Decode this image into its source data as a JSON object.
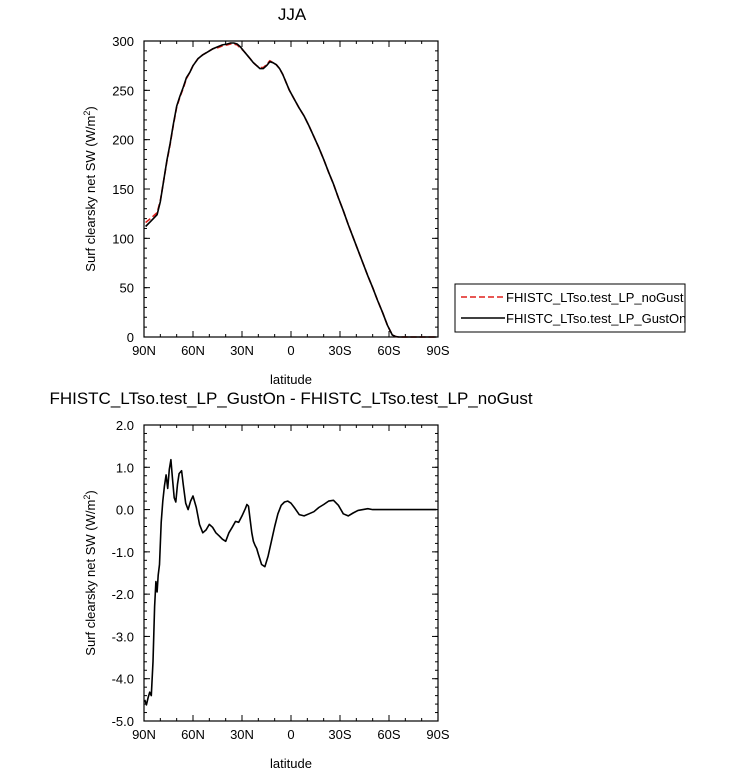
{
  "chart_data": [
    {
      "type": "line",
      "title": "JJA",
      "xlabel": "latitude",
      "ylabel": "Surf clearsky net SW (W/m",
      "ylabel_sup": "2",
      "ylabel_close": ")",
      "xlim": [
        90,
        -90
      ],
      "ylim": [
        0,
        300
      ],
      "xticks": [
        90,
        60,
        30,
        0,
        -30,
        -60,
        -90
      ],
      "xtick_labels": [
        "90N",
        "60N",
        "30N",
        "0",
        "30S",
        "60S",
        "90S"
      ],
      "yticks": [
        0,
        50,
        100,
        150,
        200,
        250,
        300
      ],
      "ytick_labels": [
        "0",
        "50",
        "100",
        "150",
        "200",
        "250",
        "300"
      ],
      "grid": false,
      "legend": "right",
      "series": [
        {
          "name": "FHISTC_LTso.test_LP_noGust",
          "color": "#e0201b",
          "dash": "dashed",
          "x": [
            89,
            86,
            82,
            80,
            78,
            76,
            74,
            72,
            70,
            68,
            66,
            64,
            62,
            60,
            57,
            54,
            51,
            48,
            45,
            42,
            39,
            37,
            35,
            33,
            31,
            29,
            27,
            25,
            23,
            21,
            19,
            17,
            15,
            13,
            11,
            9,
            7,
            5,
            3,
            1,
            -2,
            -5,
            -8,
            -11,
            -14,
            -17,
            -20,
            -23,
            -26,
            -29,
            -32,
            -35,
            -38,
            -41,
            -44,
            -47,
            -50,
            -53,
            -56,
            -59,
            -62,
            -64,
            -66,
            -68,
            -70,
            -72,
            -74,
            -77,
            -80,
            -85,
            -89
          ],
          "y": [
            116,
            120,
            126,
            138,
            158,
            178,
            195,
            215,
            233,
            243,
            252,
            262,
            268,
            275,
            282,
            286,
            289,
            292,
            293,
            295,
            296,
            297,
            297,
            296,
            293,
            290,
            286,
            282,
            278,
            275,
            273,
            273,
            276,
            280,
            278,
            276,
            272,
            266,
            258,
            250,
            241,
            232,
            224,
            214,
            203,
            192,
            180,
            167,
            155,
            141,
            128,
            114,
            101,
            88,
            75,
            62,
            50,
            37,
            25,
            12,
            2,
            0.5,
            0,
            0,
            0,
            0,
            0,
            0,
            0,
            0,
            0
          ]
        },
        {
          "name": "FHISTC_LTso.test_LP_GustOn",
          "color": "#000000",
          "dash": "solid",
          "x": [
            89,
            86,
            82,
            80,
            78,
            76,
            74,
            72,
            70,
            68,
            66,
            64,
            62,
            60,
            57,
            54,
            51,
            48,
            45,
            42,
            39,
            37,
            35,
            33,
            31,
            29,
            27,
            25,
            23,
            21,
            19,
            17,
            15,
            13,
            11,
            9,
            7,
            5,
            3,
            1,
            -2,
            -5,
            -8,
            -11,
            -14,
            -17,
            -20,
            -23,
            -26,
            -29,
            -32,
            -35,
            -38,
            -41,
            -44,
            -47,
            -50,
            -53,
            -56,
            -59,
            -62,
            -64,
            -66,
            -68,
            -70,
            -72,
            -74,
            -77,
            -80,
            -85,
            -89
          ],
          "y": [
            112,
            117,
            124,
            137,
            158,
            179,
            196,
            216,
            234,
            244,
            253,
            263,
            268,
            275,
            282,
            286,
            289,
            292,
            294,
            296,
            297,
            298,
            298,
            297,
            294,
            290,
            286,
            282,
            278,
            275,
            272,
            272,
            275,
            279,
            278,
            276,
            272,
            266,
            258,
            250,
            241,
            232,
            224,
            214,
            203,
            192,
            180,
            167,
            155,
            141,
            128,
            114,
            101,
            88,
            75,
            62,
            50,
            37,
            25,
            12,
            2,
            0.5,
            0,
            0,
            0,
            0,
            0,
            0,
            0,
            0,
            0
          ]
        }
      ]
    },
    {
      "type": "line",
      "title": "FHISTC_LTso.test_LP_GustOn - FHISTC_LTso.test_LP_noGust",
      "xlabel": "latitude",
      "ylabel": "Surf clearsky net SW (W/m",
      "ylabel_sup": "2",
      "ylabel_close": ")",
      "xlim": [
        90,
        -90
      ],
      "ylim": [
        -5,
        2
      ],
      "xticks": [
        90,
        60,
        30,
        0,
        -30,
        -60,
        -90
      ],
      "xtick_labels": [
        "90N",
        "60N",
        "30N",
        "0",
        "30S",
        "60S",
        "90S"
      ],
      "yticks": [
        2,
        1,
        0,
        -1,
        -2,
        -3,
        -4,
        -5
      ],
      "ytick_labels": [
        "2.0",
        "1.0",
        "0.0",
        "-1.0",
        "-2.0",
        "-3.0",
        "-4.0",
        "-5.0"
      ],
      "grid": false,
      "series": [
        {
          "color": "#000000",
          "dash": "solid",
          "x": [
            89.5,
            88.5,
            87.5,
            86.5,
            85.5,
            84.5,
            83.5,
            82.7,
            82,
            81.3,
            80.5,
            79.5,
            78.5,
            77.5,
            76.5,
            75.5,
            74.5,
            73.5,
            72.5,
            71.5,
            70.5,
            69.5,
            68.5,
            67,
            66,
            64.5,
            63,
            61.5,
            60,
            58,
            56,
            54,
            52,
            50,
            48,
            46,
            44,
            42,
            40,
            38,
            36,
            34,
            32,
            30,
            28,
            27,
            26,
            25,
            24,
            23,
            22,
            21,
            20,
            18,
            16,
            14,
            12,
            10,
            8,
            6,
            4,
            2,
            0,
            -2,
            -5,
            -8,
            -11,
            -14,
            -17,
            -20,
            -23,
            -26,
            -29,
            -32,
            -35,
            -38,
            -41,
            -44,
            -47,
            -50,
            -53,
            -56,
            -59,
            -62,
            -65,
            -68,
            -71,
            -74,
            -77,
            -80,
            -83,
            -86,
            -89
          ],
          "y": [
            -4.5,
            -4.62,
            -4.45,
            -4.32,
            -4.4,
            -3.6,
            -2.3,
            -1.7,
            -1.95,
            -1.55,
            -1.3,
            -0.3,
            0.2,
            0.55,
            0.82,
            0.5,
            0.95,
            1.18,
            0.7,
            0.28,
            0.18,
            0.6,
            0.85,
            0.92,
            0.6,
            0.15,
            0.0,
            0.2,
            0.32,
            0.05,
            -0.35,
            -0.55,
            -0.48,
            -0.35,
            -0.42,
            -0.55,
            -0.62,
            -0.7,
            -0.75,
            -0.55,
            -0.42,
            -0.28,
            -0.3,
            -0.15,
            0.02,
            0.12,
            0.08,
            -0.25,
            -0.55,
            -0.75,
            -0.85,
            -0.92,
            -1.05,
            -1.3,
            -1.35,
            -1.1,
            -0.75,
            -0.4,
            -0.1,
            0.1,
            0.18,
            0.2,
            0.15,
            0.05,
            -0.12,
            -0.15,
            -0.1,
            -0.05,
            0.05,
            0.12,
            0.2,
            0.22,
            0.1,
            -0.1,
            -0.15,
            -0.08,
            -0.02,
            0.0,
            0.02,
            0.0,
            0.0,
            0.0,
            0.0,
            0.0,
            0.0,
            0.0,
            0.0,
            0.0,
            0.0,
            0.0,
            0.0,
            0.0,
            0.0
          ]
        }
      ]
    }
  ]
}
